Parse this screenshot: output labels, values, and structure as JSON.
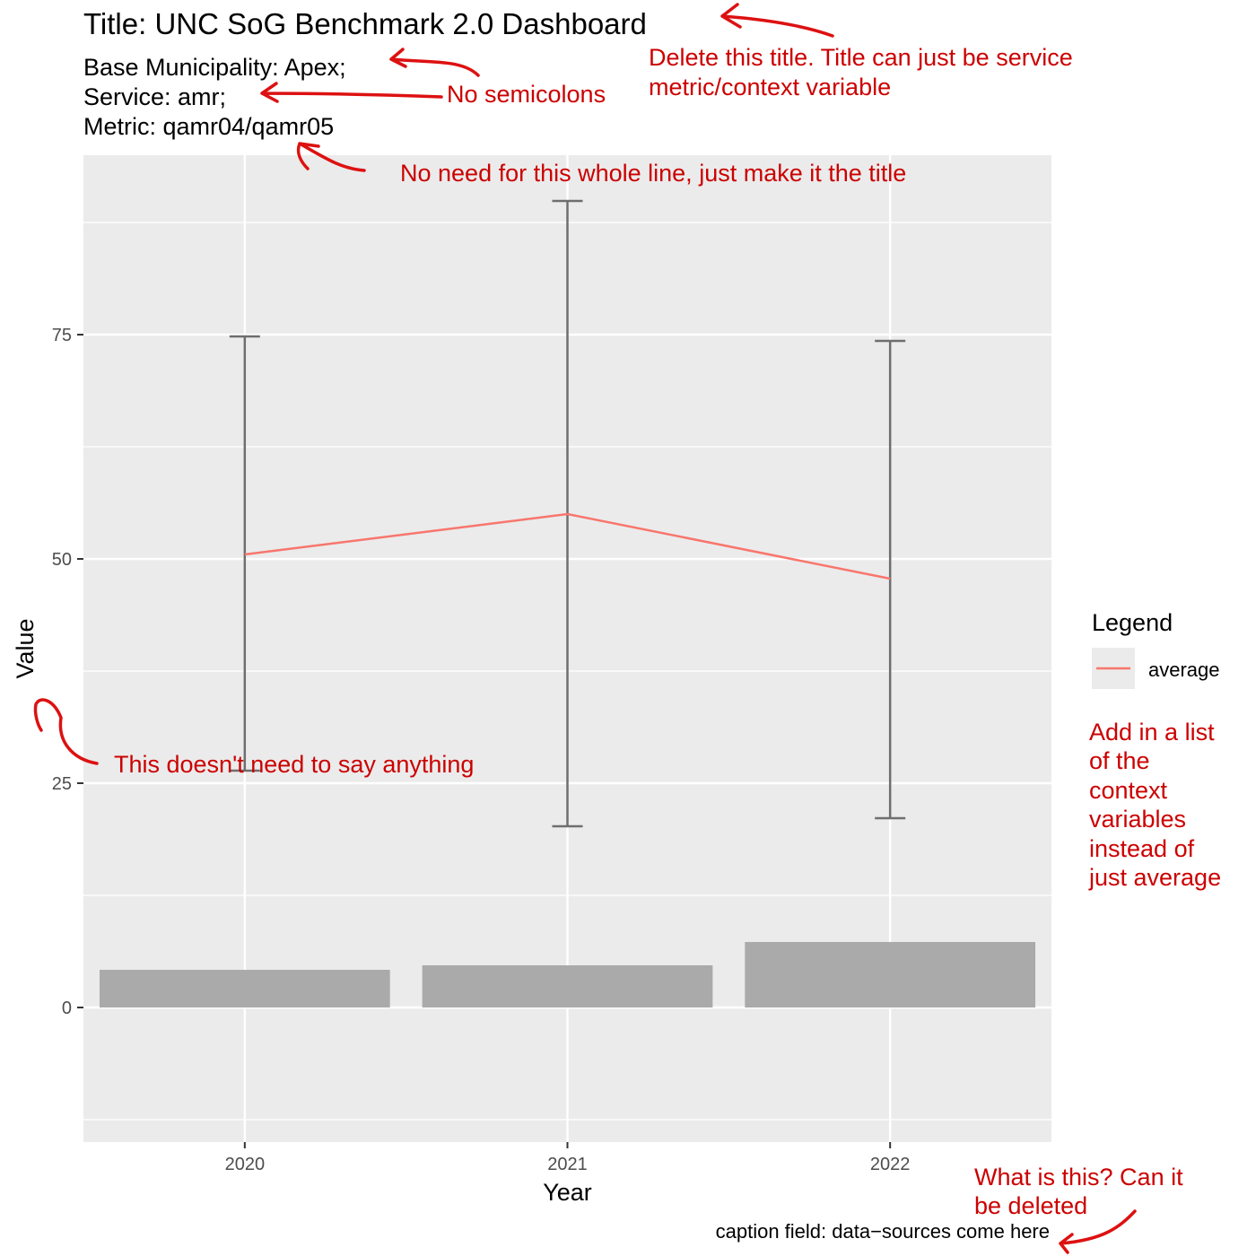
{
  "header": {
    "title": "Title: UNC SoG Benchmark 2.0 Dashboard",
    "subtitle_lines": [
      "Base Municipality: Apex;",
      "Service: amr;",
      "Metric: qamr04/qamr05"
    ]
  },
  "caption": "caption field: data−sources come here",
  "annotations": {
    "delete_title": [
      "Delete this title. Title can just be service",
      "metric/context variable"
    ],
    "no_semicolons": "No semicolons",
    "no_need_line": "No need for this whole line, just make it the title",
    "value_label_note": "This doesn't need to say anything",
    "legend_note": [
      "Add in a list",
      "of the",
      "context",
      "variables",
      "instead of",
      "just average"
    ],
    "caption_note": [
      "What is this? Can it",
      "be deleted"
    ]
  },
  "colors": {
    "panel_bg": "#ebebeb",
    "grid": "#ffffff",
    "bar": "#aaaaaa",
    "errorbar": "#6e6e6e",
    "line": "#f8766d",
    "annotation": "#cc0000"
  },
  "chart_data": {
    "type": "bar",
    "categories": [
      "2020",
      "2021",
      "2022"
    ],
    "xlabel": "Year",
    "ylabel": "Value",
    "ylim": [
      -15,
      95
    ],
    "yticks": [
      0,
      25,
      50,
      75
    ],
    "bars": [
      4.2,
      4.7,
      7.3
    ],
    "errorbars": [
      {
        "low": 26.4,
        "high": 74.8
      },
      {
        "low": 20.2,
        "high": 89.9
      },
      {
        "low": 21.1,
        "high": 74.3
      }
    ],
    "series": [
      {
        "name": "average",
        "values": [
          50.5,
          55.0,
          47.8
        ]
      }
    ],
    "legend": {
      "title": "Legend",
      "position": "right"
    },
    "grid": true
  }
}
